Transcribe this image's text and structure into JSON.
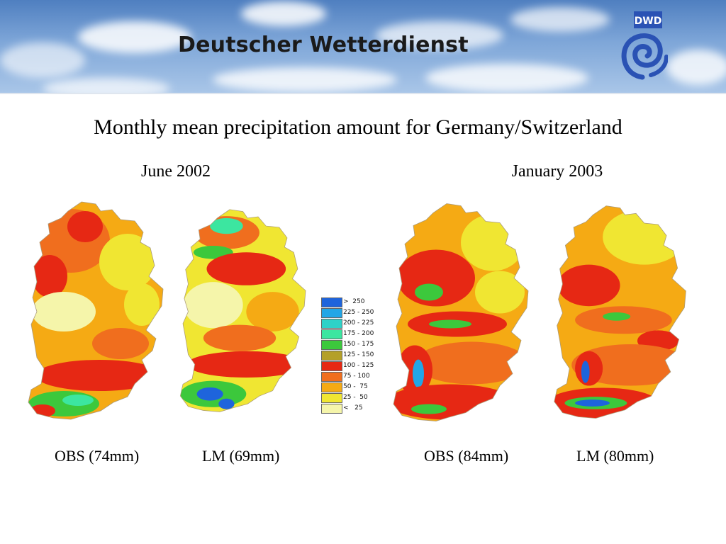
{
  "banner": {
    "title": "Deutscher Wetterdienst",
    "logo_text": "DWD",
    "logo_icon": "dwd-spiral-logo-icon"
  },
  "title": "Monthly mean precipitation amount for Germany/Switzerland",
  "periods": [
    "June 2002",
    "January 2003"
  ],
  "maps": [
    {
      "label": "OBS (74mm)"
    },
    {
      "label": "LM (69mm)"
    },
    {
      "label": "OBS (84mm)"
    },
    {
      "label": "LM (80mm)"
    }
  ],
  "legend": {
    "items": [
      {
        "label": ">  250",
        "color": "#1e64dc"
      },
      {
        "label": "225 - 250",
        "color": "#22a6e6"
      },
      {
        "label": "200 - 225",
        "color": "#2ed2c8"
      },
      {
        "label": "175 - 200",
        "color": "#3ce6a0"
      },
      {
        "label": "150 - 175",
        "color": "#3cc83c"
      },
      {
        "label": "125 - 150",
        "color": "#b4a028"
      },
      {
        "label": "100 - 125",
        "color": "#e62814"
      },
      {
        "label": "75 - 100",
        "color": "#f06e1e"
      },
      {
        "label": "50 -  75",
        "color": "#f5aa14"
      },
      {
        "label": "25 -  50",
        "color": "#f0e632"
      },
      {
        "label": "<   25",
        "color": "#f5f5aa"
      }
    ]
  }
}
